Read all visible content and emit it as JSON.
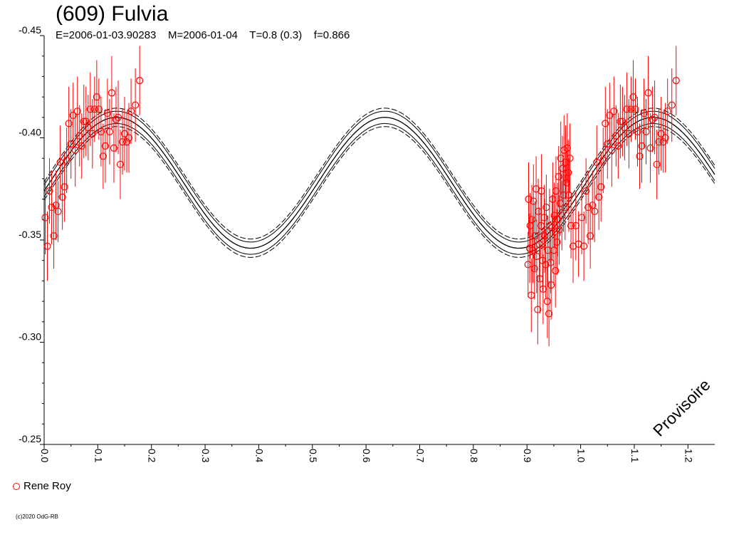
{
  "header": {
    "title": "(609) Fulvia",
    "subtitle": "E=2006-01-03.90283    M=2006-01-04    T=0.8 (0.3)    f=0.866"
  },
  "watermark": "Provisoire",
  "legend": {
    "label": "Rene Roy",
    "marker_color": "#ff0000"
  },
  "copyright": "(c)2020 OdG-RB",
  "chart_data": {
    "type": "scatter",
    "title": "(609) Fulvia",
    "subtitle": "E=2006-01-03.90283    M=2006-01-04    T=0.8 (0.3)    f=0.866",
    "xlabel": "",
    "ylabel": "",
    "xlim": [
      0.0,
      1.25
    ],
    "ylim": [
      -0.25,
      -0.45
    ],
    "y_inverted": true,
    "x_ticks": [
      "0.0",
      "0.1",
      "0.2",
      "0.3",
      "0.4",
      "0.5",
      "0.6",
      "0.7",
      "0.8",
      "0.9",
      "1.0",
      "1.1",
      "1.2"
    ],
    "y_ticks": [
      "-0.45",
      "-0.40",
      "-0.35",
      "-0.30",
      "-0.25"
    ],
    "grid": false,
    "legend_position": "bottom-left",
    "colors": {
      "observations": "#ff0000",
      "model": "#000000"
    },
    "model_curve": {
      "mean": -0.378,
      "amplitude": 0.032,
      "phase_of_max": 0.135,
      "inner_band": 0.003,
      "outer_band": 0.0045
    },
    "series": [
      {
        "name": "Rene Roy",
        "points": [
          [
            0.002,
            -0.361,
            0.018
          ],
          [
            0.006,
            -0.347,
            0.017
          ],
          [
            0.01,
            -0.374,
            0.016
          ],
          [
            0.014,
            -0.366,
            0.018
          ],
          [
            0.018,
            -0.352,
            0.016
          ],
          [
            0.022,
            -0.367,
            0.017
          ],
          [
            0.026,
            -0.364,
            0.015
          ],
          [
            0.03,
            -0.388,
            0.018
          ],
          [
            0.034,
            -0.371,
            0.016
          ],
          [
            0.038,
            -0.376,
            0.017
          ],
          [
            0.042,
            -0.389,
            0.016
          ],
          [
            0.046,
            -0.407,
            0.018
          ],
          [
            0.05,
            -0.397,
            0.017
          ],
          [
            0.054,
            -0.411,
            0.016
          ],
          [
            0.058,
            -0.394,
            0.018
          ],
          [
            0.062,
            -0.413,
            0.017
          ],
          [
            0.066,
            -0.401,
            0.015
          ],
          [
            0.07,
            -0.396,
            0.016
          ],
          [
            0.074,
            -0.408,
            0.018
          ],
          [
            0.078,
            -0.408,
            0.017
          ],
          [
            0.082,
            -0.405,
            0.016
          ],
          [
            0.086,
            -0.414,
            0.018
          ],
          [
            0.09,
            -0.402,
            0.017
          ],
          [
            0.094,
            -0.414,
            0.016
          ],
          [
            0.098,
            -0.42,
            0.018
          ],
          [
            0.102,
            -0.414,
            0.015
          ],
          [
            0.106,
            -0.403,
            0.017
          ],
          [
            0.11,
            -0.391,
            0.016
          ],
          [
            0.114,
            -0.396,
            0.018
          ],
          [
            0.118,
            -0.412,
            0.017
          ],
          [
            0.122,
            -0.403,
            0.016
          ],
          [
            0.126,
            -0.422,
            0.018
          ],
          [
            0.13,
            -0.395,
            0.017
          ],
          [
            0.134,
            -0.409,
            0.016
          ],
          [
            0.138,
            -0.41,
            0.018
          ],
          [
            0.142,
            -0.387,
            0.017
          ],
          [
            0.146,
            -0.398,
            0.016
          ],
          [
            0.15,
            -0.402,
            0.018
          ],
          [
            0.154,
            -0.398,
            0.015
          ],
          [
            0.158,
            -0.4,
            0.017
          ],
          [
            0.162,
            -0.413,
            0.016
          ],
          [
            0.17,
            -0.416,
            0.018
          ],
          [
            0.178,
            -0.428,
            0.017
          ],
          [
            0.902,
            -0.338,
            0.016
          ],
          [
            0.903,
            -0.37,
            0.018
          ],
          [
            0.905,
            -0.346,
            0.017
          ],
          [
            0.906,
            -0.357,
            0.016
          ],
          [
            0.908,
            -0.323,
            0.018
          ],
          [
            0.909,
            -0.36,
            0.017
          ],
          [
            0.911,
            -0.345,
            0.016
          ],
          [
            0.912,
            -0.369,
            0.018
          ],
          [
            0.914,
            -0.336,
            0.015
          ],
          [
            0.915,
            -0.352,
            0.017
          ],
          [
            0.917,
            -0.375,
            0.016
          ],
          [
            0.918,
            -0.342,
            0.018
          ],
          [
            0.92,
            -0.316,
            0.017
          ],
          [
            0.921,
            -0.364,
            0.016
          ],
          [
            0.923,
            -0.348,
            0.018
          ],
          [
            0.924,
            -0.331,
            0.017
          ],
          [
            0.926,
            -0.357,
            0.016
          ],
          [
            0.927,
            -0.374,
            0.018
          ],
          [
            0.929,
            -0.34,
            0.015
          ],
          [
            0.93,
            -0.326,
            0.017
          ],
          [
            0.932,
            -0.361,
            0.016
          ],
          [
            0.933,
            -0.352,
            0.018
          ],
          [
            0.935,
            -0.338,
            0.017
          ],
          [
            0.936,
            -0.366,
            0.016
          ],
          [
            0.938,
            -0.32,
            0.018
          ],
          [
            0.939,
            -0.345,
            0.017
          ],
          [
            0.941,
            -0.314,
            0.016
          ],
          [
            0.942,
            -0.357,
            0.018
          ],
          [
            0.944,
            -0.339,
            0.015
          ],
          [
            0.945,
            -0.328,
            0.017
          ],
          [
            0.947,
            -0.356,
            0.016
          ],
          [
            0.948,
            -0.37,
            0.018
          ],
          [
            0.95,
            -0.345,
            0.017
          ],
          [
            0.951,
            -0.362,
            0.016
          ],
          [
            0.953,
            -0.335,
            0.018
          ],
          [
            0.954,
            -0.374,
            0.017
          ],
          [
            0.956,
            -0.349,
            0.016
          ],
          [
            0.957,
            -0.36,
            0.018
          ],
          [
            0.959,
            -0.381,
            0.015
          ],
          [
            0.96,
            -0.355,
            0.017
          ],
          [
            0.962,
            -0.368,
            0.016
          ],
          [
            0.963,
            -0.39,
            0.018
          ],
          [
            0.965,
            -0.362,
            0.017
          ],
          [
            0.966,
            -0.385,
            0.016
          ],
          [
            0.968,
            -0.372,
            0.018
          ],
          [
            0.969,
            -0.394,
            0.017
          ],
          [
            0.971,
            -0.366,
            0.016
          ],
          [
            0.972,
            -0.388,
            0.018
          ],
          [
            0.974,
            -0.378,
            0.015
          ],
          [
            0.975,
            -0.395,
            0.017
          ],
          [
            0.977,
            -0.383,
            0.016
          ],
          [
            0.978,
            -0.372,
            0.018
          ],
          [
            0.98,
            -0.39,
            0.017
          ],
          [
            0.982,
            -0.357,
            0.016
          ],
          [
            0.986,
            -0.347,
            0.018
          ],
          [
            0.991,
            -0.357,
            0.017
          ],
          [
            0.996,
            -0.348,
            0.016
          ],
          [
            1.002,
            -0.361,
            0.018
          ],
          [
            1.006,
            -0.347,
            0.017
          ],
          [
            1.01,
            -0.374,
            0.016
          ],
          [
            1.014,
            -0.366,
            0.018
          ],
          [
            1.018,
            -0.352,
            0.016
          ],
          [
            1.022,
            -0.367,
            0.017
          ],
          [
            1.026,
            -0.364,
            0.015
          ],
          [
            1.03,
            -0.388,
            0.018
          ],
          [
            1.034,
            -0.371,
            0.016
          ],
          [
            1.038,
            -0.376,
            0.017
          ],
          [
            1.042,
            -0.389,
            0.016
          ],
          [
            1.046,
            -0.407,
            0.018
          ],
          [
            1.05,
            -0.397,
            0.017
          ],
          [
            1.054,
            -0.411,
            0.016
          ],
          [
            1.058,
            -0.394,
            0.018
          ],
          [
            1.062,
            -0.413,
            0.017
          ],
          [
            1.066,
            -0.401,
            0.015
          ],
          [
            1.07,
            -0.396,
            0.016
          ],
          [
            1.074,
            -0.408,
            0.018
          ],
          [
            1.078,
            -0.408,
            0.017
          ],
          [
            1.082,
            -0.405,
            0.016
          ],
          [
            1.086,
            -0.414,
            0.018
          ],
          [
            1.09,
            -0.402,
            0.017
          ],
          [
            1.094,
            -0.414,
            0.016
          ],
          [
            1.098,
            -0.42,
            0.018
          ],
          [
            1.102,
            -0.414,
            0.015
          ],
          [
            1.106,
            -0.403,
            0.017
          ],
          [
            1.11,
            -0.391,
            0.016
          ],
          [
            1.114,
            -0.396,
            0.018
          ],
          [
            1.118,
            -0.412,
            0.017
          ],
          [
            1.122,
            -0.403,
            0.016
          ],
          [
            1.126,
            -0.422,
            0.018
          ],
          [
            1.13,
            -0.395,
            0.017
          ],
          [
            1.134,
            -0.409,
            0.016
          ],
          [
            1.138,
            -0.41,
            0.018
          ],
          [
            1.142,
            -0.387,
            0.017
          ],
          [
            1.146,
            -0.398,
            0.016
          ],
          [
            1.15,
            -0.402,
            0.018
          ],
          [
            1.154,
            -0.398,
            0.015
          ],
          [
            1.158,
            -0.4,
            0.017
          ],
          [
            1.162,
            -0.413,
            0.016
          ],
          [
            1.17,
            -0.416,
            0.018
          ],
          [
            1.178,
            -0.428,
            0.017
          ]
        ]
      }
    ]
  }
}
